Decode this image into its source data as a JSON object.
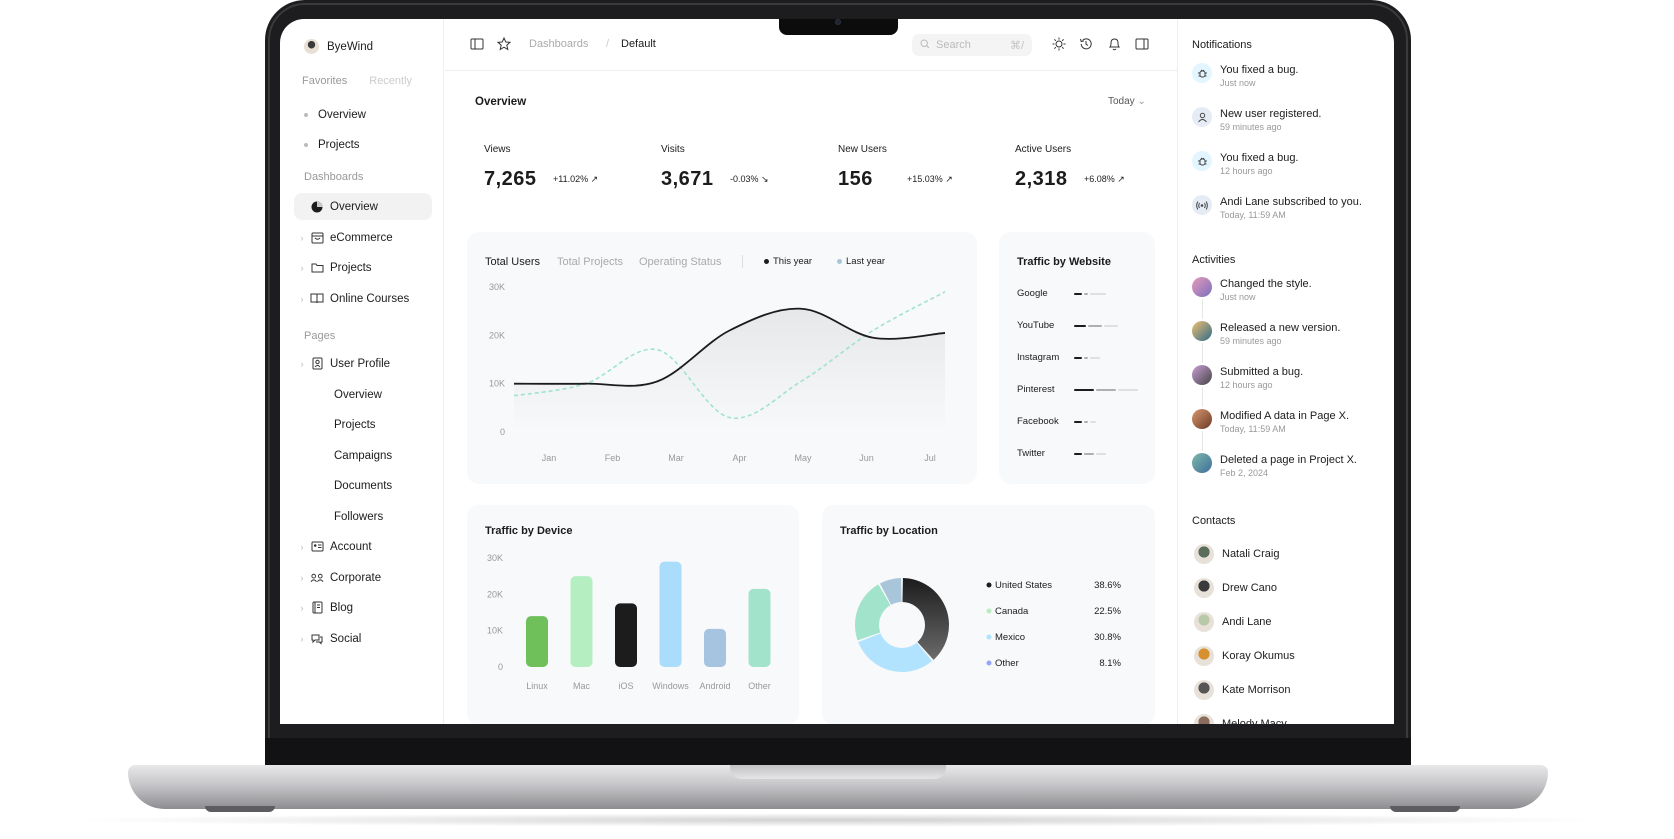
{
  "brand": {
    "name": "ByeWind"
  },
  "sidebar": {
    "tabs": [
      "Favorites",
      "Recently"
    ],
    "favorites": [
      {
        "label": "Overview"
      },
      {
        "label": "Projects"
      }
    ],
    "dashboards_heading": "Dashboards",
    "dashboards": [
      {
        "label": "Overview",
        "icon": "pie-chart-icon"
      },
      {
        "label": "eCommerce",
        "icon": "shopping-bag-icon"
      },
      {
        "label": "Projects",
        "icon": "folder-icon"
      },
      {
        "label": "Online Courses",
        "icon": "book-icon"
      }
    ],
    "pages_heading": "Pages",
    "user_profile": {
      "label": "User Profile",
      "icon": "id-card-icon"
    },
    "user_profile_sub": [
      "Overview",
      "Projects",
      "Campaigns",
      "Documents",
      "Followers"
    ],
    "pages": [
      {
        "label": "Account",
        "icon": "id-badge-icon"
      },
      {
        "label": "Corporate",
        "icon": "users-icon"
      },
      {
        "label": "Blog",
        "icon": "notebook-icon"
      },
      {
        "label": "Social",
        "icon": "chat-icon"
      }
    ]
  },
  "topbar": {
    "breadcrumb_parent": "Dashboards",
    "breadcrumb_sep": "/",
    "breadcrumb_current": "Default",
    "search_placeholder": "Search",
    "search_shortcut": "⌘/"
  },
  "overview": {
    "title": "Overview",
    "range": "Today",
    "cards": [
      {
        "label": "Views",
        "value": "7,265",
        "change": "+11.02%",
        "color": "#e3f5ff"
      },
      {
        "label": "Visits",
        "value": "3,671",
        "change": "-0.03%",
        "color": "#e5ecf6"
      },
      {
        "label": "New Users",
        "value": "156",
        "change": "+15.03%",
        "color": "#e3f5ff"
      },
      {
        "label": "Active Users",
        "value": "2,318",
        "change": "+6.08%",
        "color": "#e5ecf6"
      }
    ]
  },
  "users_chart": {
    "tabs": [
      "Total Users",
      "Total Projects",
      "Operating Status"
    ],
    "legend": [
      "This year",
      "Last year"
    ],
    "y_ticks": [
      "30K",
      "20K",
      "10K",
      "0"
    ],
    "x_ticks": [
      "Jan",
      "Feb",
      "Mar",
      "Apr",
      "May",
      "Jun",
      "Jul"
    ]
  },
  "traffic_website": {
    "title": "Traffic by Website",
    "sites": [
      "Google",
      "YouTube",
      "Instagram",
      "Pinterest",
      "Facebook",
      "Twitter"
    ]
  },
  "traffic_device": {
    "title": "Traffic by Device",
    "y_ticks": [
      "30K",
      "20K",
      "10K",
      "0"
    ]
  },
  "traffic_location": {
    "title": "Traffic by Location",
    "items": [
      {
        "name": "United States",
        "pct": "38.6%",
        "color": "#1c1c1c"
      },
      {
        "name": "Canada",
        "pct": "22.5%",
        "color": "#baedbd"
      },
      {
        "name": "Mexico",
        "pct": "30.8%",
        "color": "#b1e3ff"
      },
      {
        "name": "Other",
        "pct": "8.1%",
        "color": "#95a4fc"
      }
    ]
  },
  "chart_data": [
    {
      "type": "line",
      "title": "Total Users",
      "x": [
        "Jan",
        "Feb",
        "Mar",
        "Apr",
        "May",
        "Jun",
        "Jul"
      ],
      "ylim": [
        0,
        30000
      ],
      "series": [
        {
          "name": "This year",
          "values": [
            10000,
            10000,
            10500,
            21000,
            25500,
            19500,
            20500
          ]
        },
        {
          "name": "Last year",
          "values": [
            7500,
            10000,
            17000,
            3000,
            10500,
            21000,
            29000
          ]
        }
      ]
    },
    {
      "type": "bar",
      "title": "Traffic by Device",
      "categories": [
        "Linux",
        "Mac",
        "iOS",
        "Windows",
        "Android",
        "Other"
      ],
      "values": [
        14000,
        25000,
        17500,
        29000,
        10500,
        21500
      ],
      "colors": [
        "#6fbf5a",
        "#b5eec0",
        "#1c1c1c",
        "#aadcfb",
        "#a6c4e0",
        "#a1e3cb"
      ],
      "ylim": [
        0,
        30000
      ]
    },
    {
      "type": "pie",
      "title": "Traffic by Location",
      "labels": [
        "United States",
        "Canada",
        "Mexico",
        "Other"
      ],
      "values": [
        38.6,
        22.5,
        30.8,
        8.1
      ]
    }
  ],
  "notifications": {
    "title": "Notifications",
    "items": [
      {
        "text": "You fixed a bug.",
        "time": "Just now",
        "icon": "bug-icon"
      },
      {
        "text": "New user registered.",
        "time": "59 minutes ago",
        "icon": "user-icon"
      },
      {
        "text": "You fixed a bug.",
        "time": "12 hours ago",
        "icon": "bug-icon"
      },
      {
        "text": "Andi Lane subscribed to you.",
        "time": "Today, 11:59 AM",
        "icon": "broadcast-icon"
      }
    ]
  },
  "activities": {
    "title": "Activities",
    "items": [
      {
        "text": "Changed the style.",
        "time": "Just now"
      },
      {
        "text": "Released a new version.",
        "time": "59 minutes ago"
      },
      {
        "text": "Submitted a bug.",
        "time": "12 hours ago"
      },
      {
        "text": "Modified A data in Page X.",
        "time": "Today, 11:59 AM"
      },
      {
        "text": "Deleted a page in Project X.",
        "time": "Feb 2, 2024"
      }
    ]
  },
  "contacts": {
    "title": "Contacts",
    "items": [
      "Natali Craig",
      "Drew Cano",
      "Andi Lane",
      "Koray Okumus",
      "Kate Morrison",
      "Melody Macy"
    ]
  }
}
